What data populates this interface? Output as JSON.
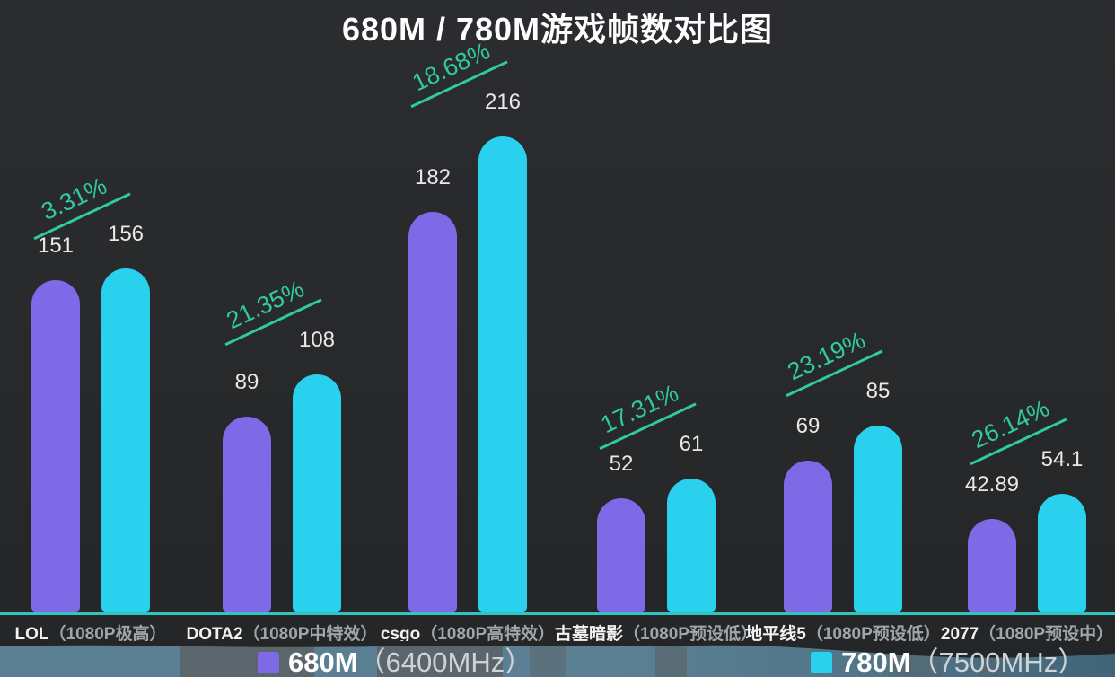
{
  "title": "680M / 780M游戏帧数对比图",
  "chart_data": {
    "type": "bar",
    "title": "680M / 780M游戏帧数对比图",
    "categories": [
      "LOL（1080P极高）",
      "DOTA2（1080P中特效）",
      "csgo（1080P高特效）",
      "古墓暗影（1080P预设低）",
      "地平线5（1080P预设低）",
      "2077（1080P预设中）"
    ],
    "category_parts": [
      {
        "game": "LOL",
        "setting": "（1080P极高）"
      },
      {
        "game": "DOTA2",
        "setting": "（1080P中特效）"
      },
      {
        "game": "csgo",
        "setting": "（1080P高特效）"
      },
      {
        "game": "古墓暗影",
        "setting": "（1080P预设低）"
      },
      {
        "game": "地平线5",
        "setting": "（1080P预设低）"
      },
      {
        "game": "2077",
        "setting": "（1080P预设中）"
      }
    ],
    "series": [
      {
        "name": "680M（6400MHz）",
        "color": "#7e69e6",
        "values": [
          151,
          89,
          182,
          52,
          69,
          42.89
        ]
      },
      {
        "name": "780M（7500MHz）",
        "color": "#29d1ee",
        "values": [
          156,
          108,
          216,
          61,
          85,
          54.1
        ]
      }
    ],
    "pct_gain": [
      "3.31%",
      "21.35%",
      "18.68%",
      "17.31%",
      "23.19%",
      "26.14%"
    ],
    "ylim": [
      0,
      230
    ],
    "grid": false,
    "value_axis_visible": false,
    "legend_position": "bottom"
  },
  "legend": {
    "items": [
      {
        "label": "680M",
        "detail": "（6400MHz）",
        "color": "#7e69e6"
      },
      {
        "label": "780M",
        "detail": "（7500MHz）",
        "color": "#29d1ee"
      }
    ]
  },
  "colors": {
    "background": "#27292b",
    "bar_680m": "#7e69e6",
    "bar_780m": "#29d1ee",
    "accent_teal": "#2fc9a2",
    "baseline_teal": "#2fc6c0",
    "value_label": "#e8e8e8",
    "category_muted": "#a2a5a7",
    "bottom_strip": "#5a7e92"
  }
}
